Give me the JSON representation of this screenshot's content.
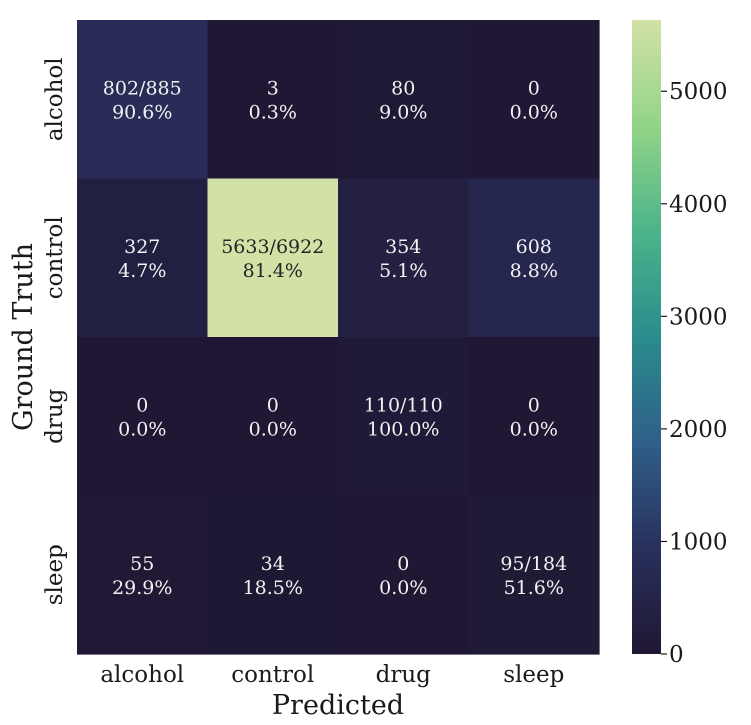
{
  "chart_data": {
    "type": "heatmap",
    "title": "",
    "xlabel": "Predicted",
    "ylabel": "Ground Truth",
    "x_categories": [
      "alcohol",
      "control",
      "drug",
      "sleep"
    ],
    "y_categories": [
      "alcohol",
      "control",
      "drug",
      "sleep"
    ],
    "values": [
      [
        802,
        3,
        80,
        0
      ],
      [
        327,
        5633,
        354,
        608
      ],
      [
        0,
        0,
        110,
        0
      ],
      [
        55,
        34,
        0,
        95
      ]
    ],
    "annotations": [
      [
        [
          "802/885",
          "90.6%"
        ],
        [
          "3",
          "0.3%"
        ],
        [
          "80",
          "9.0%"
        ],
        [
          "0",
          "0.0%"
        ]
      ],
      [
        [
          "327",
          "4.7%"
        ],
        [
          "5633/6922",
          "81.4%"
        ],
        [
          "354",
          "5.1%"
        ],
        [
          "608",
          "8.8%"
        ]
      ],
      [
        [
          "0",
          "0.0%"
        ],
        [
          "0",
          "0.0%"
        ],
        [
          "110/110",
          "100.0%"
        ],
        [
          "0",
          "0.0%"
        ]
      ],
      [
        [
          "55",
          "29.9%"
        ],
        [
          "34",
          "18.5%"
        ],
        [
          "0",
          "0.0%"
        ],
        [
          "95/184",
          "51.6%"
        ]
      ]
    ],
    "colorbar": {
      "min": 0,
      "max": 5633,
      "ticks": [
        0,
        1000,
        2000,
        3000,
        4000,
        5000
      ],
      "tick_labels": [
        "0",
        "1000",
        "2000",
        "3000",
        "4000",
        "5000"
      ],
      "colormap": "crest-dark",
      "colormap_stops": [
        "#1f1733",
        "#29305c",
        "#2f5f8a",
        "#2a8c8c",
        "#4cb48a",
        "#92d487",
        "#d2e1a6"
      ]
    },
    "light_text_color": "#f2f2f2",
    "dark_text_color": "#262626"
  }
}
